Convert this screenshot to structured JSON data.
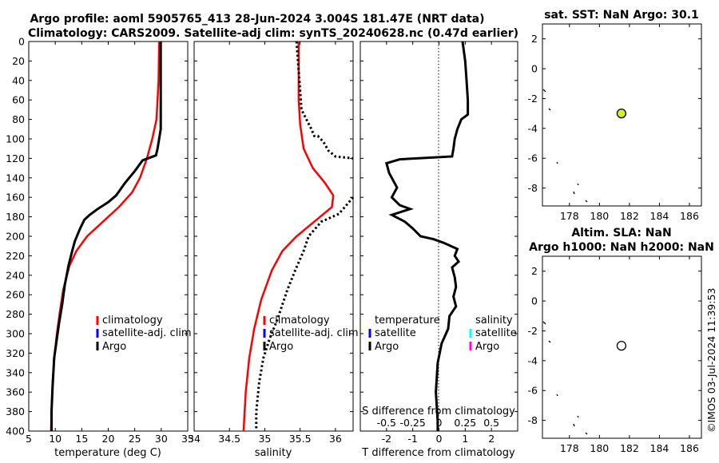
{
  "title": {
    "line1": "Argo profile: aoml 5905765_413 28-Jun-2024 3.004S 181.47E (NRT data)",
    "line2": "Climatology: CARS2009. Satellite-adj clim: synTS_20240628.nc (0.47d earlier)"
  },
  "colors": {
    "climatology": "#ff0000",
    "satellite": "#0000ff",
    "argo": "#000000",
    "sat_salinity": "#00ffff",
    "sat_salinity_argo": "#ff00ff",
    "sst_marker": "#d8ec2e"
  },
  "depth_ticks": [
    "0",
    "20",
    "40",
    "60",
    "80",
    "100",
    "120",
    "140",
    "160",
    "180",
    "200",
    "220",
    "240",
    "260",
    "280",
    "300",
    "320",
    "340",
    "360",
    "380",
    "400"
  ],
  "chart_data": [
    {
      "type": "line",
      "name": "temperature",
      "xlabel": "temperature (deg C)",
      "ylabel": "depth",
      "xlim": [
        5,
        35
      ],
      "ylim": [
        400,
        0
      ],
      "xticks": [
        "5",
        "10",
        "15",
        "20",
        "25",
        "30",
        "35"
      ],
      "legend": [
        "climatology",
        "satellite-adj. clim",
        "Argo"
      ],
      "series": [
        {
          "name": "climatology",
          "points": [
            [
              29.6,
              0
            ],
            [
              29.5,
              40
            ],
            [
              29.1,
              80
            ],
            [
              28.3,
              100
            ],
            [
              27.3,
              120
            ],
            [
              26.0,
              140
            ],
            [
              24.5,
              155
            ],
            [
              22.0,
              170
            ],
            [
              19.0,
              185
            ],
            [
              16.0,
              200
            ],
            [
              14.0,
              215
            ],
            [
              12.7,
              230
            ],
            [
              11.5,
              255
            ],
            [
              10.8,
              280
            ],
            [
              10.3,
              300
            ],
            [
              9.9,
              320
            ],
            [
              9.5,
              350
            ],
            [
              9.3,
              380
            ],
            [
              9.2,
              400
            ]
          ]
        },
        {
          "name": "Argo",
          "points": [
            [
              29.9,
              0
            ],
            [
              29.9,
              90
            ],
            [
              29.6,
              100
            ],
            [
              29.3,
              110
            ],
            [
              29.0,
              117
            ],
            [
              26.5,
              122
            ],
            [
              25.0,
              133
            ],
            [
              23.2,
              145
            ],
            [
              21.5,
              158
            ],
            [
              20.0,
              165
            ],
            [
              18.0,
              172
            ],
            [
              16.5,
              178
            ],
            [
              15.5,
              183
            ],
            [
              14.7,
              192
            ],
            [
              13.7,
              205
            ],
            [
              13.2,
              215
            ],
            [
              12.5,
              230
            ],
            [
              11.8,
              250
            ],
            [
              11.3,
              270
            ],
            [
              10.7,
              290
            ],
            [
              10.3,
              305
            ],
            [
              9.8,
              325
            ],
            [
              9.5,
              355
            ],
            [
              9.3,
              380
            ],
            [
              9.3,
              400
            ]
          ]
        }
      ]
    },
    {
      "type": "line",
      "name": "salinity",
      "xlabel": "salinity",
      "xlim": [
        34,
        36.25
      ],
      "ylim": [
        400,
        0
      ],
      "xticks": [
        "34",
        "34.5",
        "35",
        "35.5",
        "36"
      ],
      "legend": [
        "climatology",
        "satellite-adj. clim",
        "Argo"
      ],
      "series": [
        {
          "name": "climatology",
          "points": [
            [
              35.48,
              0
            ],
            [
              35.48,
              60
            ],
            [
              35.5,
              85
            ],
            [
              35.55,
              110
            ],
            [
              35.68,
              130
            ],
            [
              35.85,
              145
            ],
            [
              35.97,
              158
            ],
            [
              35.95,
              170
            ],
            [
              35.7,
              185
            ],
            [
              35.45,
              200
            ],
            [
              35.25,
              215
            ],
            [
              35.1,
              235
            ],
            [
              34.95,
              265
            ],
            [
              34.85,
              295
            ],
            [
              34.78,
              325
            ],
            [
              34.73,
              360
            ],
            [
              34.7,
              400
            ]
          ]
        },
        {
          "name": "Argo",
          "points": [
            [
              35.45,
              0
            ],
            [
              35.48,
              30
            ],
            [
              35.52,
              70
            ],
            [
              35.66,
              90
            ],
            [
              35.7,
              97
            ],
            [
              35.75,
              97
            ],
            [
              35.83,
              103
            ],
            [
              35.9,
              112
            ],
            [
              36.0,
              118
            ],
            [
              36.25,
              120
            ]
          ]
        },
        {
          "name": "Argo-deep",
          "points": [
            [
              36.25,
              160
            ],
            [
              36.05,
              177
            ],
            [
              35.8,
              185
            ],
            [
              35.62,
              200
            ],
            [
              35.55,
              215
            ],
            [
              35.43,
              235
            ],
            [
              35.32,
              255
            ],
            [
              35.18,
              285
            ],
            [
              35.07,
              305
            ],
            [
              34.98,
              325
            ],
            [
              34.92,
              350
            ],
            [
              34.88,
              380
            ],
            [
              34.88,
              400
            ]
          ]
        }
      ]
    },
    {
      "type": "line",
      "name": "T difference from climatology",
      "xlabel": "T difference from climatology",
      "x2label": "S difference from climatology",
      "xlim": [
        -3,
        3
      ],
      "ylim": [
        400,
        0
      ],
      "xticks": [
        "-2",
        "-1",
        "0",
        "1",
        "2"
      ],
      "x2ticks": [
        "-0.5",
        "-0.25",
        "0",
        "0.25",
        "0.5"
      ],
      "legend_t": [
        "temperature",
        "satellite",
        "Argo"
      ],
      "legend_s": [
        "salinity",
        "satellite",
        "Argo"
      ],
      "series": [
        {
          "name": "temperature",
          "points": [
            [
              0.9,
              0
            ],
            [
              1.0,
              20
            ],
            [
              1.05,
              40
            ],
            [
              1.1,
              60
            ],
            [
              1.1,
              75
            ],
            [
              0.85,
              80
            ],
            [
              0.7,
              90
            ],
            [
              0.6,
              100
            ],
            [
              0.55,
              110
            ],
            [
              0.5,
              118
            ],
            [
              -1.5,
              121
            ],
            [
              -2.0,
              125
            ],
            [
              -1.9,
              135
            ],
            [
              -1.6,
              150
            ],
            [
              -1.8,
              160
            ],
            [
              -1.5,
              168
            ],
            [
              -1.1,
              172
            ],
            [
              -1.8,
              178
            ],
            [
              -1.3,
              185
            ],
            [
              -1.0,
              192
            ],
            [
              -0.7,
              200
            ],
            [
              -0.2,
              203
            ],
            [
              0.2,
              207
            ],
            [
              0.7,
              213
            ],
            [
              0.6,
              220
            ],
            [
              0.75,
              226
            ],
            [
              0.5,
              232
            ],
            [
              0.6,
              242
            ],
            [
              0.65,
              252
            ],
            [
              0.55,
              262
            ],
            [
              0.65,
              272
            ],
            [
              0.4,
              282
            ],
            [
              0.35,
              295
            ],
            [
              0.1,
              310
            ],
            [
              -0.05,
              330
            ],
            [
              -0.12,
              360
            ],
            [
              -0.05,
              390
            ],
            [
              -0.05,
              400
            ]
          ]
        }
      ]
    },
    {
      "type": "scatter",
      "name": "sat SST map",
      "title": "sat. SST: NaN Argo: 30.1",
      "xlim": [
        176.2,
        186.8
      ],
      "ylim": [
        -9.2,
        3
      ],
      "xticks": [
        "178",
        "180",
        "182",
        "184",
        "186"
      ],
      "yticks": [
        "2",
        "0",
        "-2",
        "-4",
        "-6",
        "-8"
      ],
      "points": [
        [
          181.47,
          -3.0
        ]
      ]
    },
    {
      "type": "scatter",
      "name": "altimetry map",
      "title1": "Altim. SLA: NaN",
      "title2": "Argo h1000: NaN h2000: NaN",
      "xlim": [
        176.2,
        186.8
      ],
      "ylim": [
        -9.2,
        3
      ],
      "xticks": [
        "178",
        "180",
        "182",
        "184",
        "186"
      ],
      "yticks": [
        "2",
        "0",
        "-2",
        "-4",
        "-6",
        "-8"
      ],
      "points": [
        [
          181.47,
          -3.0
        ]
      ]
    }
  ],
  "stamp": "©IMOS 03-Jul-2024 11:39:53"
}
